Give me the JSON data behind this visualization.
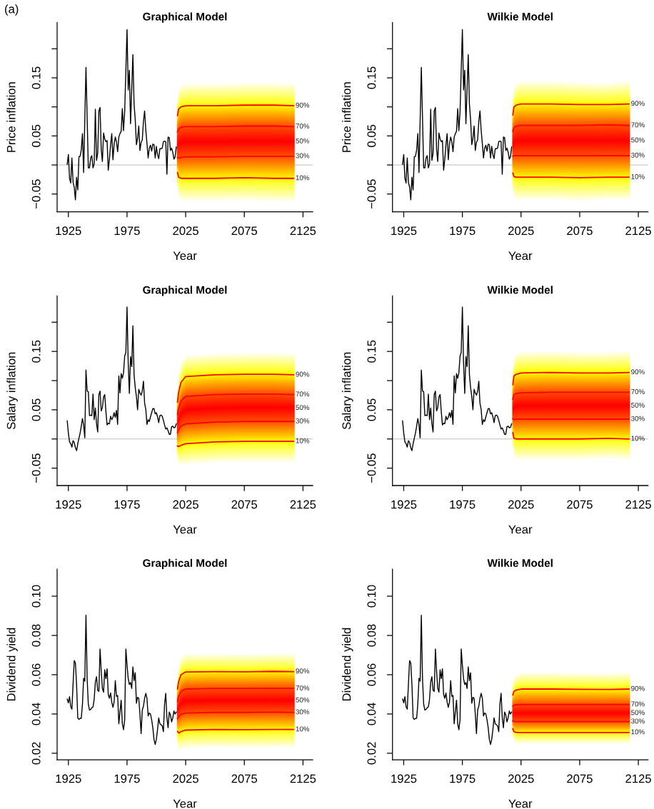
{
  "chart_data": [
    {
      "type": "line",
      "title": "Graphical Model",
      "xlabel": "Year",
      "ylabel": "Price inflation",
      "xlim": [
        1915.4,
        2133.3
      ],
      "xticks": [
        1925,
        1975,
        2025,
        2075,
        2125
      ],
      "ylim": [
        -0.0807,
        0.245
      ],
      "yticks": [
        {
          "value": -0.05,
          "label": "−0.05"
        },
        {
          "value": 0,
          "label": null
        },
        {
          "value": 0.05,
          "label": "0.05"
        },
        {
          "value": 0.1,
          "label": null
        },
        {
          "value": 0.15,
          "label": "0.15"
        },
        {
          "value": 0.2,
          "label": null
        }
      ],
      "ref_lines": [
        {
          "axis": "y",
          "value": 0,
          "color": "#bebebe"
        }
      ],
      "annotations": [
        "(a)",
        "50%"
      ],
      "series": [
        {
          "color": "#000000",
          "x": [
            1924,
            1925,
            1926,
            1927,
            1928,
            1929,
            1930,
            1931,
            1932,
            1933,
            1934,
            1935,
            1936,
            1937,
            1938,
            1940,
            1942,
            1943,
            1944,
            1945,
            1946,
            1947,
            1948,
            1949,
            1950,
            1951,
            1952,
            1953,
            1954,
            1955,
            1956,
            1957,
            1958,
            1959,
            1960,
            1961,
            1962,
            1963,
            1964,
            1965,
            1966,
            1967,
            1968,
            1969,
            1970,
            1971,
            1972,
            1973,
            1975,
            1976,
            1977,
            1978,
            1980,
            1981,
            1982,
            1983,
            1984,
            1985,
            1986,
            1987,
            1988,
            1989,
            1990,
            1991,
            1992,
            1993,
            1994,
            1995,
            1996,
            1997,
            1998,
            1999,
            2000,
            2001,
            2002,
            2003,
            2004,
            2005,
            2006,
            2007,
            2008,
            2009,
            2010,
            2011,
            2012,
            2013,
            2014,
            2015,
            2016,
            2017
          ],
          "values": [
            0.001,
            0.018,
            -0.023,
            -0.031,
            0.012,
            -0.03,
            -0.038,
            -0.06,
            -0.021,
            -0.043,
            0.014,
            0.015,
            0.026,
            0.054,
            -0.013,
            0.168,
            -0.005,
            -0.005,
            0.012,
            0.016,
            -0.005,
            0.002,
            0.096,
            0.008,
            0.02,
            0.093,
            0.099,
            0.027,
            0.006,
            0.055,
            0.045,
            0.04,
            0.042,
            -0.009,
            0.01,
            0.035,
            0.054,
            0.009,
            0.036,
            0.048,
            0.04,
            0.023,
            0.048,
            0.054,
            0.058,
            0.097,
            0.059,
            0.092,
            0.233,
            0.129,
            0.163,
            0.071,
            0.19,
            0.105,
            0.078,
            0.035,
            0.046,
            0.067,
            0.025,
            0.039,
            0.043,
            0.075,
            0.093,
            0.06,
            0.037,
            0.012,
            0.029,
            0.034,
            0.024,
            0.036,
            0.035,
            0.012,
            0.032,
            0.018,
            0.011,
            0.028,
            0.028,
            0.029,
            0.04,
            0.041,
            0.04,
            -0.016,
            0.048,
            0.047,
            0.025,
            0.029,
            0.022,
            0.01,
            0.014,
            0.031
          ]
        },
        {
          "name": "90%",
          "color": "#ff0000",
          "x": [
            2018,
            2019,
            2021,
            2025,
            2050,
            2075,
            2100,
            2117
          ],
          "values": [
            0.085,
            0.096,
            0.1,
            0.102,
            0.102,
            0.103,
            0.103,
            0.102
          ]
        },
        {
          "name": "70%",
          "color": "#ff0000",
          "x": [
            2018,
            2019,
            2021,
            2025,
            2050,
            2075,
            2100,
            2117
          ],
          "values": [
            0.057,
            0.062,
            0.065,
            0.066,
            0.066,
            0.067,
            0.067,
            0.066
          ]
        },
        {
          "name": "30%",
          "color": "#ff0000",
          "x": [
            2018,
            2019,
            2021,
            2025,
            2050,
            2075,
            2100,
            2117
          ],
          "values": [
            0.013,
            0.012,
            0.013,
            0.014,
            0.014,
            0.015,
            0.015,
            0.015
          ]
        },
        {
          "name": "10%",
          "color": "#ff0000",
          "x": [
            2018,
            2019,
            2021,
            2025,
            2050,
            2075,
            2100,
            2117
          ],
          "values": [
            -0.013,
            -0.021,
            -0.023,
            -0.023,
            -0.023,
            -0.022,
            -0.023,
            -0.023
          ]
        }
      ]
    },
    {
      "type": "line",
      "title": "Wilkie Model",
      "xlabel": "Year",
      "ylabel": "Price inflation",
      "xlim": [
        1915.4,
        2133.3
      ],
      "xticks": [
        1925,
        1975,
        2025,
        2075,
        2125
      ],
      "ylim": [
        -0.0807,
        0.245
      ],
      "yticks": [
        {
          "value": -0.05,
          "label": "−0.05"
        },
        {
          "value": 0,
          "label": null
        },
        {
          "value": 0.05,
          "label": "0.05"
        },
        {
          "value": 0.1,
          "label": null
        },
        {
          "value": 0.15,
          "label": "0.15"
        },
        {
          "value": 0.2,
          "label": null
        }
      ],
      "ref_lines": [
        {
          "axis": "y",
          "value": 0,
          "color": "#bebebe"
        }
      ],
      "annotations": [
        "50%"
      ],
      "series": [
        {
          "color": "#000000",
          "x": [
            1924,
            1925,
            1926,
            1927,
            1928,
            1929,
            1930,
            1931,
            1932,
            1933,
            1934,
            1935,
            1936,
            1937,
            1938,
            1940,
            1942,
            1943,
            1944,
            1945,
            1946,
            1947,
            1948,
            1949,
            1950,
            1951,
            1952,
            1953,
            1954,
            1955,
            1956,
            1957,
            1958,
            1959,
            1960,
            1961,
            1962,
            1963,
            1964,
            1965,
            1966,
            1967,
            1968,
            1969,
            1970,
            1971,
            1972,
            1973,
            1975,
            1976,
            1977,
            1978,
            1980,
            1981,
            1982,
            1983,
            1984,
            1985,
            1986,
            1987,
            1988,
            1989,
            1990,
            1991,
            1992,
            1993,
            1994,
            1995,
            1996,
            1997,
            1998,
            1999,
            2000,
            2001,
            2002,
            2003,
            2004,
            2005,
            2006,
            2007,
            2008,
            2009,
            2010,
            2011,
            2012,
            2013,
            2014,
            2015,
            2016,
            2017
          ],
          "values": [
            0.001,
            0.018,
            -0.023,
            -0.031,
            0.012,
            -0.03,
            -0.038,
            -0.06,
            -0.021,
            -0.043,
            0.014,
            0.015,
            0.026,
            0.054,
            -0.013,
            0.168,
            -0.005,
            -0.005,
            0.012,
            0.016,
            -0.005,
            0.002,
            0.096,
            0.008,
            0.02,
            0.093,
            0.099,
            0.027,
            0.006,
            0.055,
            0.045,
            0.04,
            0.042,
            -0.009,
            0.01,
            0.035,
            0.054,
            0.009,
            0.036,
            0.048,
            0.04,
            0.023,
            0.048,
            0.054,
            0.058,
            0.097,
            0.059,
            0.092,
            0.233,
            0.129,
            0.163,
            0.071,
            0.19,
            0.105,
            0.078,
            0.035,
            0.046,
            0.067,
            0.025,
            0.039,
            0.043,
            0.075,
            0.093,
            0.06,
            0.037,
            0.012,
            0.029,
            0.034,
            0.024,
            0.036,
            0.035,
            0.012,
            0.032,
            0.018,
            0.011,
            0.028,
            0.028,
            0.029,
            0.04,
            0.041,
            0.04,
            -0.016,
            0.048,
            0.047,
            0.025,
            0.029,
            0.022,
            0.01,
            0.014,
            0.031
          ]
        },
        {
          "name": "90%",
          "color": "#ff0000",
          "x": [
            2018,
            2019,
            2021,
            2025,
            2050,
            2075,
            2100,
            2117
          ],
          "values": [
            0.086,
            0.1,
            0.103,
            0.105,
            0.105,
            0.104,
            0.104,
            0.105
          ]
        },
        {
          "name": "70%",
          "color": "#ff0000",
          "x": [
            2018,
            2019,
            2021,
            2025,
            2050,
            2075,
            2100,
            2117
          ],
          "values": [
            0.058,
            0.064,
            0.067,
            0.068,
            0.068,
            0.068,
            0.069,
            0.068
          ]
        },
        {
          "name": "30%",
          "color": "#ff0000",
          "x": [
            2018,
            2019,
            2021,
            2025,
            2050,
            2075,
            2100,
            2117
          ],
          "values": [
            0.015,
            0.016,
            0.016,
            0.016,
            0.016,
            0.016,
            0.016,
            0.016
          ]
        },
        {
          "name": "10%",
          "color": "#ff0000",
          "x": [
            2018,
            2019,
            2021,
            2025,
            2050,
            2075,
            2100,
            2117
          ],
          "values": [
            -0.014,
            -0.02,
            -0.021,
            -0.021,
            -0.021,
            -0.022,
            -0.021,
            -0.021
          ]
        }
      ]
    },
    {
      "type": "line",
      "title": "Graphical Model",
      "xlabel": "Year",
      "ylabel": "Salary inflation",
      "xlim": [
        1915.4,
        2133.3
      ],
      "xticks": [
        1925,
        1975,
        2025,
        2075,
        2125
      ],
      "ylim": [
        -0.0798,
        0.245
      ],
      "yticks": [
        {
          "value": -0.05,
          "label": "−0.05"
        },
        {
          "value": 0,
          "label": null
        },
        {
          "value": 0.05,
          "label": "0.05"
        },
        {
          "value": 0.1,
          "label": null
        },
        {
          "value": 0.15,
          "label": "0.15"
        },
        {
          "value": 0.2,
          "label": null
        }
      ],
      "ref_lines": [
        {
          "axis": "y",
          "value": 0,
          "color": "#bebebe"
        }
      ],
      "annotations": [
        "50%"
      ],
      "series": [
        {
          "color": "#000000",
          "x": [
            1924,
            1925,
            1926,
            1927,
            1928,
            1929,
            1930,
            1931,
            1932,
            1933,
            1934,
            1935,
            1936,
            1937,
            1938,
            1939,
            1940,
            1941,
            1942,
            1943,
            1944,
            1945,
            1946,
            1947,
            1948,
            1949,
            1950,
            1951,
            1952,
            1953,
            1954,
            1955,
            1956,
            1957,
            1958,
            1959,
            1960,
            1961,
            1962,
            1963,
            1964,
            1965,
            1966,
            1967,
            1968,
            1969,
            1970,
            1971,
            1972,
            1973,
            1974,
            1975,
            1976,
            1977,
            1978,
            1979,
            1980,
            1981,
            1982,
            1983,
            1984,
            1985,
            1986,
            1987,
            1988,
            1989,
            1990,
            1991,
            1992,
            1993,
            1994,
            1995,
            1996,
            1997,
            1998,
            1999,
            2000,
            2001,
            2002,
            2003,
            2004,
            2005,
            2006,
            2007,
            2008,
            2009,
            2010,
            2011,
            2012,
            2013,
            2014,
            2015,
            2016,
            2017
          ],
          "values": [
            0.031,
            0.01,
            -0.005,
            -0.008,
            -0.014,
            -0.003,
            -0.006,
            -0.015,
            -0.02,
            -0.008,
            0.001,
            0.01,
            0.022,
            0.035,
            0.024,
            0.002,
            0.118,
            0.082,
            0.081,
            0.04,
            0.041,
            0.04,
            0.077,
            0.033,
            0.053,
            0.026,
            0.012,
            0.076,
            0.082,
            0.048,
            0.054,
            0.072,
            0.076,
            0.047,
            0.024,
            0.027,
            0.026,
            0.039,
            0.033,
            0.037,
            0.045,
            0.037,
            0.049,
            0.025,
            0.108,
            0.079,
            0.112,
            0.104,
            0.113,
            0.142,
            0.148,
            0.226,
            0.13,
            0.078,
            0.141,
            0.124,
            0.194,
            0.11,
            0.088,
            0.073,
            0.05,
            0.085,
            0.079,
            0.075,
            0.082,
            0.099,
            0.061,
            0.051,
            0.025,
            0.033,
            0.03,
            0.038,
            0.045,
            0.052,
            0.052,
            0.043,
            0.045,
            0.038,
            0.028,
            0.04,
            0.041,
            0.039,
            0.032,
            0.024,
            0.017,
            0.019,
            0.014,
            0.008,
            0.008,
            0.021,
            0.022,
            0.019,
            0.02,
            0.026
          ]
        },
        {
          "name": "90%",
          "color": "#ff0000",
          "x": [
            2018,
            2019,
            2021,
            2025,
            2050,
            2075,
            2100,
            2117
          ],
          "values": [
            0.063,
            0.08,
            0.097,
            0.107,
            0.11,
            0.111,
            0.111,
            0.11
          ]
        },
        {
          "name": "70%",
          "color": "#ff0000",
          "x": [
            2018,
            2019,
            2021,
            2025,
            2050,
            2075,
            2100,
            2117
          ],
          "values": [
            0.042,
            0.053,
            0.065,
            0.073,
            0.076,
            0.077,
            0.077,
            0.076
          ]
        },
        {
          "name": "30%",
          "color": "#ff0000",
          "x": [
            2018,
            2019,
            2021,
            2025,
            2050,
            2075,
            2100,
            2117
          ],
          "values": [
            0.011,
            0.016,
            0.022,
            0.026,
            0.029,
            0.03,
            0.03,
            0.03
          ]
        },
        {
          "name": "10%",
          "color": "#ff0000",
          "x": [
            2018,
            2019,
            2021,
            2025,
            2050,
            2075,
            2100,
            2117
          ],
          "values": [
            -0.012,
            -0.013,
            -0.011,
            -0.008,
            -0.005,
            -0.004,
            -0.004,
            -0.004
          ]
        }
      ]
    },
    {
      "type": "line",
      "title": "Wilkie Model",
      "xlabel": "Year",
      "ylabel": "Salary inflation",
      "xlim": [
        1915.4,
        2133.3
      ],
      "xticks": [
        1925,
        1975,
        2025,
        2075,
        2125
      ],
      "ylim": [
        -0.0798,
        0.245
      ],
      "yticks": [
        {
          "value": -0.05,
          "label": "−0.05"
        },
        {
          "value": 0,
          "label": null
        },
        {
          "value": 0.05,
          "label": "0.05"
        },
        {
          "value": 0.1,
          "label": null
        },
        {
          "value": 0.15,
          "label": "0.15"
        },
        {
          "value": 0.2,
          "label": null
        }
      ],
      "ref_lines": [
        {
          "axis": "y",
          "value": 0,
          "color": "#bebebe"
        }
      ],
      "annotations": [
        "50%"
      ],
      "series": [
        {
          "color": "#000000",
          "x": [
            1924,
            1925,
            1926,
            1927,
            1928,
            1929,
            1930,
            1931,
            1932,
            1933,
            1934,
            1935,
            1936,
            1937,
            1938,
            1939,
            1940,
            1941,
            1942,
            1943,
            1944,
            1945,
            1946,
            1947,
            1948,
            1949,
            1950,
            1951,
            1952,
            1953,
            1954,
            1955,
            1956,
            1957,
            1958,
            1959,
            1960,
            1961,
            1962,
            1963,
            1964,
            1965,
            1966,
            1967,
            1968,
            1969,
            1970,
            1971,
            1972,
            1973,
            1974,
            1975,
            1976,
            1977,
            1978,
            1979,
            1980,
            1981,
            1982,
            1983,
            1984,
            1985,
            1986,
            1987,
            1988,
            1989,
            1990,
            1991,
            1992,
            1993,
            1994,
            1995,
            1996,
            1997,
            1998,
            1999,
            2000,
            2001,
            2002,
            2003,
            2004,
            2005,
            2006,
            2007,
            2008,
            2009,
            2010,
            2011,
            2012,
            2013,
            2014,
            2015,
            2016,
            2017
          ],
          "values": [
            0.031,
            0.01,
            -0.005,
            -0.008,
            -0.014,
            -0.003,
            -0.006,
            -0.015,
            -0.02,
            -0.008,
            0.001,
            0.01,
            0.022,
            0.035,
            0.024,
            0.002,
            0.118,
            0.082,
            0.081,
            0.04,
            0.041,
            0.04,
            0.077,
            0.033,
            0.053,
            0.026,
            0.012,
            0.076,
            0.082,
            0.048,
            0.054,
            0.072,
            0.076,
            0.047,
            0.024,
            0.027,
            0.026,
            0.039,
            0.033,
            0.037,
            0.045,
            0.037,
            0.049,
            0.025,
            0.108,
            0.079,
            0.112,
            0.104,
            0.113,
            0.142,
            0.148,
            0.226,
            0.13,
            0.078,
            0.141,
            0.124,
            0.194,
            0.11,
            0.088,
            0.073,
            0.05,
            0.085,
            0.079,
            0.075,
            0.082,
            0.099,
            0.061,
            0.051,
            0.025,
            0.033,
            0.03,
            0.038,
            0.045,
            0.052,
            0.052,
            0.043,
            0.045,
            0.038,
            0.028,
            0.04,
            0.041,
            0.039,
            0.032,
            0.024,
            0.017,
            0.019,
            0.014,
            0.008,
            0.008,
            0.021,
            0.022,
            0.019,
            0.02,
            0.026
          ]
        },
        {
          "name": "90%",
          "color": "#ff0000",
          "x": [
            2018,
            2019,
            2021,
            2025,
            2050,
            2075,
            2100,
            2117
          ],
          "values": [
            0.093,
            0.108,
            0.111,
            0.113,
            0.114,
            0.113,
            0.113,
            0.114
          ]
        },
        {
          "name": "70%",
          "color": "#ff0000",
          "x": [
            2018,
            2019,
            2021,
            2025,
            2050,
            2075,
            2100,
            2117
          ],
          "values": [
            0.068,
            0.076,
            0.078,
            0.079,
            0.08,
            0.08,
            0.08,
            0.08
          ]
        },
        {
          "name": "30%",
          "color": "#ff0000",
          "x": [
            2018,
            2019,
            2021,
            2025,
            2050,
            2075,
            2100,
            2117
          ],
          "values": [
            0.035,
            0.033,
            0.034,
            0.034,
            0.034,
            0.034,
            0.034,
            0.034
          ]
        },
        {
          "name": "10%",
          "color": "#ff0000",
          "x": [
            2018,
            2019,
            2021,
            2025,
            2050,
            2075,
            2100,
            2117
          ],
          "values": [
            0.011,
            0.001,
            0.0,
            0.0,
            0.0,
            0.0,
            0.001,
            0.0
          ]
        }
      ]
    },
    {
      "type": "line",
      "title": "Graphical Model",
      "xlabel": "Year",
      "ylabel": "Dividend yield",
      "xlim": [
        1915.4,
        2133.3
      ],
      "xticks": [
        1925,
        1975,
        2025,
        2075,
        2125
      ],
      "ylim": [
        0.0167,
        0.1138
      ],
      "yticks": [
        {
          "value": 0.02,
          "label": "0.02"
        },
        {
          "value": 0.04,
          "label": "0.04"
        },
        {
          "value": 0.06,
          "label": "0.06"
        },
        {
          "value": 0.08,
          "label": "0.08"
        },
        {
          "value": 0.1,
          "label": "0.10"
        }
      ],
      "annotations": [
        "50%"
      ],
      "series": [
        {
          "color": "#000000",
          "x": [
            1924,
            1925,
            1926,
            1927,
            1928,
            1929,
            1930,
            1931,
            1932,
            1933,
            1934,
            1935,
            1936,
            1937,
            1938,
            1939,
            1940,
            1941,
            1942,
            1943,
            1944,
            1945,
            1946,
            1947,
            1948,
            1949,
            1950,
            1951,
            1952,
            1953,
            1954,
            1955,
            1956,
            1957,
            1958,
            1959,
            1960,
            1961,
            1962,
            1963,
            1964,
            1965,
            1966,
            1967,
            1968,
            1969,
            1970,
            1971,
            1972,
            1973,
            1974,
            1975,
            1976,
            1977,
            1978,
            1979,
            1980,
            1981,
            1982,
            1983,
            1984,
            1985,
            1986,
            1987,
            1988,
            1989,
            1990,
            1991,
            1992,
            1993,
            1994,
            1995,
            1996,
            1997,
            1998,
            1999,
            2000,
            2001,
            2002,
            2003,
            2004,
            2005,
            2006,
            2007,
            2008,
            2009,
            2010,
            2011,
            2012,
            2013,
            2014,
            2015,
            2016,
            2017
          ],
          "values": [
            0.0476,
            0.0457,
            0.0488,
            0.0437,
            0.0424,
            0.0552,
            0.0672,
            0.066,
            0.055,
            0.038,
            0.0372,
            0.0378,
            0.0378,
            0.045,
            0.0582,
            0.0567,
            0.0903,
            0.058,
            0.045,
            0.042,
            0.0423,
            0.0432,
            0.0436,
            0.0475,
            0.0563,
            0.059,
            0.052,
            0.0515,
            0.0731,
            0.062,
            0.053,
            0.0511,
            0.0625,
            0.058,
            0.063,
            0.05,
            0.048,
            0.0507,
            0.046,
            0.0434,
            0.046,
            0.057,
            0.049,
            0.0494,
            0.035,
            0.041,
            0.047,
            0.035,
            0.032,
            0.037,
            0.0731,
            0.065,
            0.058,
            0.055,
            0.056,
            0.053,
            0.064,
            0.057,
            0.061,
            0.0455,
            0.0485,
            0.048,
            0.04,
            0.03,
            0.042,
            0.044,
            0.048,
            0.0505,
            0.048,
            0.039,
            0.0405,
            0.04,
            0.037,
            0.033,
            0.027,
            0.0245,
            0.027,
            0.032,
            0.038,
            0.035,
            0.0345,
            0.034,
            0.031,
            0.045,
            0.0505,
            0.038,
            0.033,
            0.041,
            0.0395,
            0.036,
            0.038,
            0.0415,
            0.04,
            0.041
          ]
        },
        {
          "name": "90%",
          "color": "#ff0000",
          "x": [
            2018,
            2019,
            2021,
            2025,
            2050,
            2075,
            2100,
            2117
          ],
          "values": [
            0.0527,
            0.0565,
            0.06,
            0.0614,
            0.0616,
            0.0615,
            0.0617,
            0.0616
          ]
        },
        {
          "name": "70%",
          "color": "#ff0000",
          "x": [
            2018,
            2019,
            2021,
            2025,
            2050,
            2075,
            2100,
            2117
          ],
          "values": [
            0.0465,
            0.049,
            0.0515,
            0.0527,
            0.053,
            0.053,
            0.0531,
            0.053
          ]
        },
        {
          "name": "30%",
          "color": "#ff0000",
          "x": [
            2018,
            2019,
            2021,
            2025,
            2050,
            2075,
            2100,
            2117
          ],
          "values": [
            0.0377,
            0.0385,
            0.0398,
            0.0405,
            0.0408,
            0.0408,
            0.0409,
            0.0408
          ]
        },
        {
          "name": "10%",
          "color": "#ff0000",
          "x": [
            2018,
            2019,
            2021,
            2025,
            2050,
            2075,
            2100,
            2117
          ],
          "values": [
            0.0312,
            0.0303,
            0.031,
            0.0318,
            0.0321,
            0.032,
            0.0321,
            0.0321
          ]
        }
      ]
    },
    {
      "type": "line",
      "title": "Wilkie Model",
      "xlabel": "Year",
      "ylabel": "Dividend yield",
      "xlim": [
        1915.4,
        2133.3
      ],
      "xticks": [
        1925,
        1975,
        2025,
        2075,
        2125
      ],
      "ylim": [
        0.0167,
        0.1138
      ],
      "yticks": [
        {
          "value": 0.02,
          "label": "0.02"
        },
        {
          "value": 0.04,
          "label": "0.04"
        },
        {
          "value": 0.06,
          "label": "0.06"
        },
        {
          "value": 0.08,
          "label": "0.08"
        },
        {
          "value": 0.1,
          "label": "0.10"
        }
      ],
      "annotations": [
        "50%"
      ],
      "series": [
        {
          "color": "#000000",
          "x": [
            1924,
            1925,
            1926,
            1927,
            1928,
            1929,
            1930,
            1931,
            1932,
            1933,
            1934,
            1935,
            1936,
            1937,
            1938,
            1939,
            1940,
            1941,
            1942,
            1943,
            1944,
            1945,
            1946,
            1947,
            1948,
            1949,
            1950,
            1951,
            1952,
            1953,
            1954,
            1955,
            1956,
            1957,
            1958,
            1959,
            1960,
            1961,
            1962,
            1963,
            1964,
            1965,
            1966,
            1967,
            1968,
            1969,
            1970,
            1971,
            1972,
            1973,
            1974,
            1975,
            1976,
            1977,
            1978,
            1979,
            1980,
            1981,
            1982,
            1983,
            1984,
            1985,
            1986,
            1987,
            1988,
            1989,
            1990,
            1991,
            1992,
            1993,
            1994,
            1995,
            1996,
            1997,
            1998,
            1999,
            2000,
            2001,
            2002,
            2003,
            2004,
            2005,
            2006,
            2007,
            2008,
            2009,
            2010,
            2011,
            2012,
            2013,
            2014,
            2015,
            2016,
            2017
          ],
          "values": [
            0.0476,
            0.0457,
            0.0488,
            0.0437,
            0.0424,
            0.0552,
            0.0672,
            0.066,
            0.055,
            0.038,
            0.0372,
            0.0378,
            0.0378,
            0.045,
            0.0582,
            0.0567,
            0.0903,
            0.058,
            0.045,
            0.042,
            0.0423,
            0.0432,
            0.0436,
            0.0475,
            0.0563,
            0.059,
            0.052,
            0.0515,
            0.0731,
            0.062,
            0.053,
            0.0511,
            0.0625,
            0.058,
            0.063,
            0.05,
            0.048,
            0.0507,
            0.046,
            0.0434,
            0.046,
            0.057,
            0.049,
            0.0494,
            0.035,
            0.041,
            0.047,
            0.035,
            0.032,
            0.037,
            0.0731,
            0.065,
            0.058,
            0.055,
            0.056,
            0.053,
            0.064,
            0.057,
            0.061,
            0.0455,
            0.0485,
            0.048,
            0.04,
            0.03,
            0.042,
            0.044,
            0.048,
            0.0505,
            0.048,
            0.039,
            0.0405,
            0.04,
            0.037,
            0.033,
            0.027,
            0.0245,
            0.027,
            0.032,
            0.038,
            0.035,
            0.0345,
            0.034,
            0.031,
            0.045,
            0.0505,
            0.038,
            0.033,
            0.041,
            0.0395,
            0.036,
            0.038,
            0.0415,
            0.04,
            0.041
          ]
        },
        {
          "name": "90%",
          "color": "#ff0000",
          "x": [
            2018,
            2019,
            2021,
            2025,
            2050,
            2075,
            2100,
            2117
          ],
          "values": [
            0.0497,
            0.0515,
            0.0522,
            0.0527,
            0.0527,
            0.0526,
            0.0525,
            0.0527
          ]
        },
        {
          "name": "70%",
          "color": "#ff0000",
          "x": [
            2018,
            2019,
            2021,
            2025,
            2050,
            2075,
            2100,
            2117
          ],
          "values": [
            0.044,
            0.0445,
            0.0447,
            0.0448,
            0.0448,
            0.0448,
            0.0448,
            0.0448
          ]
        },
        {
          "name": "30%",
          "color": "#ff0000",
          "x": [
            2018,
            2019,
            2021,
            2025,
            2050,
            2075,
            2100,
            2117
          ],
          "values": [
            0.0365,
            0.0362,
            0.0361,
            0.0361,
            0.0361,
            0.0361,
            0.0361,
            0.0361
          ]
        },
        {
          "name": "10%",
          "color": "#ff0000",
          "x": [
            2018,
            2019,
            2021,
            2025,
            2050,
            2075,
            2100,
            2117
          ],
          "values": [
            0.0325,
            0.031,
            0.0306,
            0.0306,
            0.0306,
            0.0306,
            0.0306,
            0.0306
          ]
        }
      ]
    }
  ]
}
